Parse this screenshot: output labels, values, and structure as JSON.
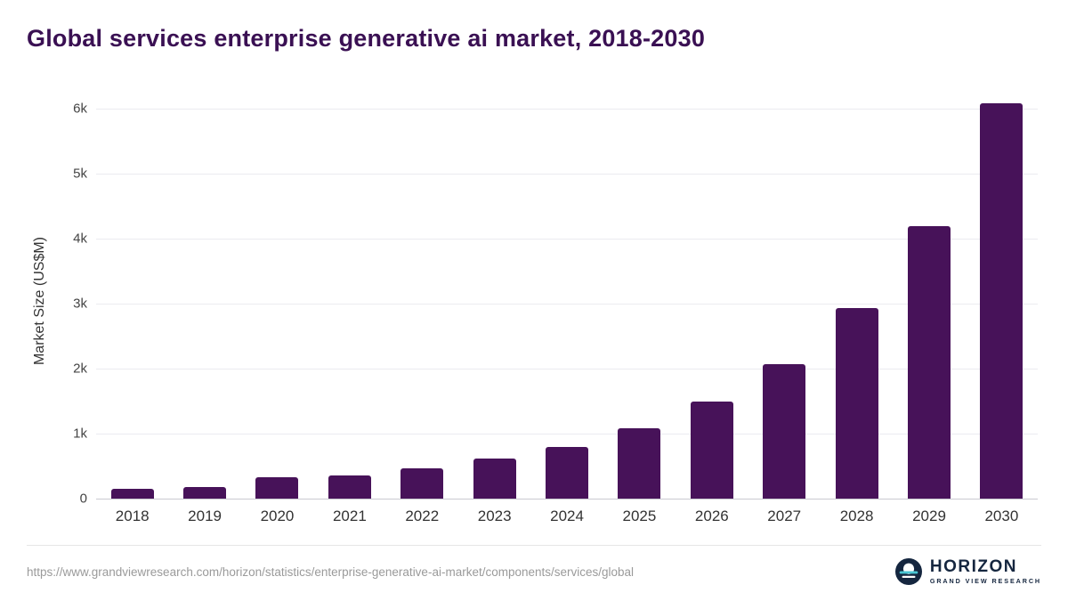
{
  "title": "Global services enterprise generative ai market, 2018-2030",
  "colors": {
    "bar": "#471259",
    "title": "#3a1053",
    "gridline": "#ebebf0",
    "baseline": "#c9c9d0"
  },
  "chart_data": {
    "type": "bar",
    "title": "Global services enterprise generative ai market, 2018-2030",
    "xlabel": "",
    "ylabel": "Market Size (US$M)",
    "categories": [
      "2018",
      "2019",
      "2020",
      "2021",
      "2022",
      "2023",
      "2024",
      "2025",
      "2026",
      "2027",
      "2028",
      "2029",
      "2030"
    ],
    "values": [
      150,
      175,
      330,
      355,
      460,
      610,
      800,
      1080,
      1490,
      2060,
      2930,
      4190,
      6080
    ],
    "ylim": [
      0,
      6500
    ],
    "yticks": [
      {
        "value": 0,
        "label": "0"
      },
      {
        "value": 1000,
        "label": "1k"
      },
      {
        "value": 2000,
        "label": "2k"
      },
      {
        "value": 3000,
        "label": "3k"
      },
      {
        "value": 4000,
        "label": "4k"
      },
      {
        "value": 5000,
        "label": "5k"
      },
      {
        "value": 6000,
        "label": "6k"
      }
    ],
    "grid": true,
    "legend": false
  },
  "footer": {
    "source_url": "https://www.grandviewresearch.com/horizon/statistics/enterprise-generative-ai-market/components/services/global",
    "logo_title": "HORIZON",
    "logo_subtitle": "GRAND VIEW RESEARCH"
  }
}
